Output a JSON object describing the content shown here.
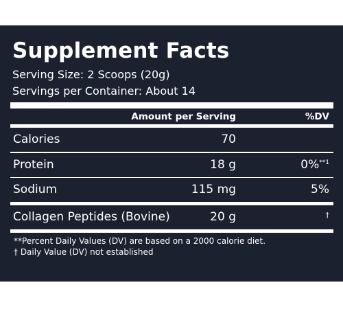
{
  "label": {
    "title": "Supplement Facts",
    "serving_size": "Serving Size: 2 Scoops (20g)",
    "servings_per_container": "Servings per Container: About 14",
    "header": {
      "amount": "Amount per Serving",
      "dv": "%DV"
    },
    "rows": [
      {
        "name": "Calories",
        "amount": "70",
        "dv": "",
        "dv_mark": ""
      },
      {
        "name": "Protein",
        "amount": "18 g",
        "dv": "0%",
        "dv_mark": "**1"
      },
      {
        "name": "Sodium",
        "amount": "115 mg",
        "dv": "5%",
        "dv_mark": ""
      },
      {
        "name": "Collagen Peptides (Bovine)",
        "amount": "20 g",
        "dv": "",
        "dv_mark": "†"
      }
    ],
    "footnotes": [
      "**Percent Daily Values (DV) are based on a 2000 calorie diet.",
      "† Daily Value (DV) not established"
    ]
  },
  "colors": {
    "background": "#1c2130",
    "text": "#ffffff",
    "page": "#ffffff"
  }
}
